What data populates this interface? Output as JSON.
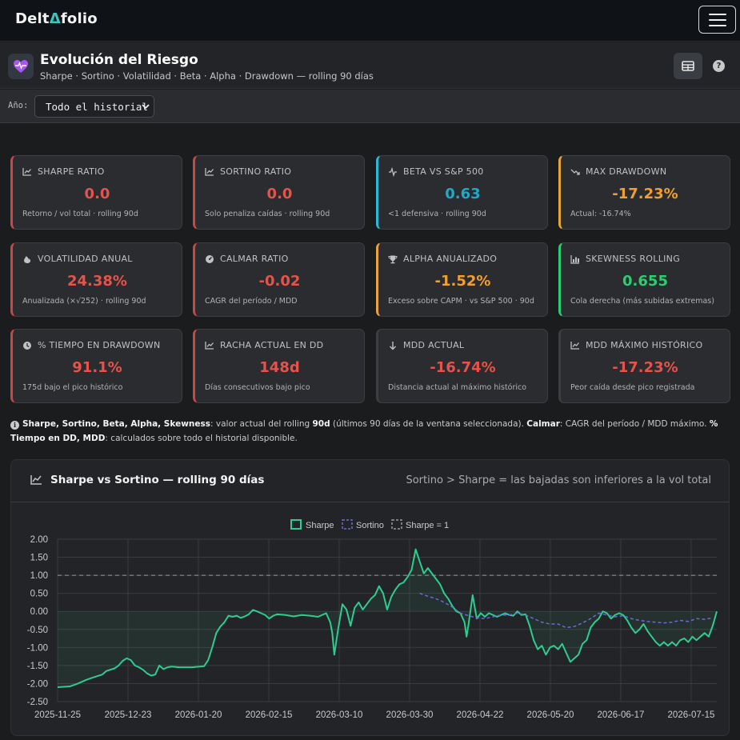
{
  "nav": {
    "brand_prefix": "Delt",
    "brand_glyph": "Δ",
    "brand_suffix": "folio"
  },
  "header": {
    "title": "Evolución del Riesgo",
    "subtitle": "Sharpe · Sortino · Volatilidad · Beta · Alpha · Drawdown — rolling 90 días",
    "help": "?"
  },
  "filter": {
    "label": "Año:",
    "selected": "Todo el historial"
  },
  "cards": [
    {
      "title": "SHARPE RATIO",
      "value": "0.0",
      "sub": "Retorno / vol total · rolling 90d",
      "color": "#e5534b",
      "accent": "#c84848",
      "icon": "line-chart-icon"
    },
    {
      "title": "SORTINO RATIO",
      "value": "0.0",
      "sub": "Solo penaliza caídas · rolling 90d",
      "color": "#e5534b",
      "accent": "#c84848",
      "icon": "line-chart-icon"
    },
    {
      "title": "BETA VS S&P 500",
      "value": "0.63",
      "sub": "<1 defensiva · rolling 90d",
      "color": "#1fa9c7",
      "accent": "#2bbad6",
      "icon": "pulse-icon"
    },
    {
      "title": "MAX DRAWDOWN",
      "value": "-17.23%",
      "sub": "Actual: -16.74%",
      "color": "#f0a030",
      "accent": "#e8a33a",
      "icon": "trend-down-icon"
    },
    {
      "title": "VOLATILIDAD ANUAL",
      "value": "24.38%",
      "sub": "Anualizada (×√252) · rolling 90d",
      "color": "#e5534b",
      "accent": "#c84848",
      "icon": "fire-icon"
    },
    {
      "title": "CALMAR RATIO",
      "value": "-0.02",
      "sub": "CAGR del período / MDD",
      "color": "#e5534b",
      "accent": "#c84848",
      "icon": "gauge-icon"
    },
    {
      "title": "ALPHA ANUALIZADO",
      "value": "-1.52%",
      "sub": "Exceso sobre CAPM · vs S&P 500 · 90d",
      "color": "#f0a030",
      "accent": "#e8a33a",
      "icon": "trophy-icon"
    },
    {
      "title": "SKEWNESS ROLLING",
      "value": "0.655",
      "sub": "Cola derecha (más subidas extremas)",
      "color": "#2ecc71",
      "accent": "#2ecc71",
      "icon": "bar-chart-icon"
    },
    {
      "title": "% TIEMPO EN DRAWDOWN",
      "value": "91.1%",
      "sub": "175d bajo el pico histórico",
      "color": "#e5534b",
      "accent": "#c84848",
      "icon": "clock-icon"
    },
    {
      "title": "RACHA ACTUAL EN DD",
      "value": "148d",
      "sub": "Días consecutivos bajo pico",
      "color": "#e5534b",
      "accent": "#c84848",
      "icon": "line-chart-icon"
    },
    {
      "title": "MDD ACTUAL",
      "value": "-16.74%",
      "sub": "Distancia actual al máximo histórico",
      "color": "#e5534b",
      "accent": "#3c3e42",
      "icon": "arrow-down-icon"
    },
    {
      "title": "MDD MÁXIMO HISTÓRICO",
      "value": "-17.23%",
      "sub": "Peor caída desde pico registrada",
      "color": "#e5534b",
      "accent": "#3c3e42",
      "icon": "line-chart-icon"
    }
  ],
  "note": {
    "b1": "Sharpe, Sortino, Beta, Alpha, Skewness",
    "t1": ": valor actual del rolling ",
    "b2": "90d",
    "t2": " (últimos 90 días de la ventana seleccionada). ",
    "b3": "Calmar",
    "t3": ": CAGR del período / MDD máximo. ",
    "b4": "% Tiempo en DD, MDD",
    "t4": ": calculados sobre todo el historial disponible."
  },
  "chart": {
    "title": "Sharpe vs Sortino — rolling 90 días",
    "note": "Sortino > Sharpe = las bajadas son inferiores a la vol total"
  },
  "chart_data": {
    "type": "line",
    "title": "Sharpe vs Sortino — rolling 90 días",
    "ylim": [
      -2.5,
      2.0
    ],
    "yticks": [
      "2.00",
      "1.50",
      "1.00",
      "0.50",
      "0.00",
      "-0.50",
      "-1.00",
      "-1.50",
      "-2.00",
      "-2.50"
    ],
    "xticks": [
      "2025-11-25",
      "2025-12-23",
      "2026-01-20",
      "2026-02-15",
      "2026-03-10",
      "2026-03-30",
      "2026-04-22",
      "2026-05-20",
      "2026-06-17",
      "2026-07-15"
    ],
    "legend": [
      "Sharpe",
      "Sortino",
      "Sharpe = 1"
    ],
    "legend_position": "top",
    "grid": true,
    "colors": {
      "sharpe": "#2ecc8f",
      "sortino": "#6b6bd6",
      "reference": "#9a9a9a"
    },
    "reference_line": 1.0,
    "sharpe": [
      [
        0,
        -2.1
      ],
      [
        3,
        -2.08
      ],
      [
        5,
        -2.0
      ],
      [
        7,
        -1.9
      ],
      [
        9,
        -1.82
      ],
      [
        11,
        -1.75
      ],
      [
        12,
        -1.65
      ],
      [
        14,
        -1.58
      ],
      [
        15,
        -1.5
      ],
      [
        16,
        -1.37
      ],
      [
        17,
        -1.3
      ],
      [
        18,
        -1.35
      ],
      [
        19,
        -1.5
      ],
      [
        20,
        -1.55
      ],
      [
        21,
        -1.62
      ],
      [
        22,
        -1.72
      ],
      [
        23,
        -1.78
      ],
      [
        24,
        -1.75
      ],
      [
        25,
        -1.5
      ],
      [
        26,
        -1.6
      ],
      [
        27,
        -1.55
      ],
      [
        28,
        -1.53
      ],
      [
        30,
        -1.55
      ],
      [
        33,
        -1.55
      ],
      [
        36,
        -1.52
      ],
      [
        37,
        -1.35
      ],
      [
        38,
        -1.0
      ],
      [
        39,
        -0.6
      ],
      [
        40,
        -0.42
      ],
      [
        41,
        -0.3
      ],
      [
        42,
        -0.12
      ],
      [
        43,
        -0.15
      ],
      [
        44,
        -0.12
      ],
      [
        45,
        -0.18
      ],
      [
        46,
        -0.14
      ],
      [
        47,
        -0.08
      ],
      [
        48,
        0.04
      ],
      [
        49,
        0.0
      ],
      [
        50,
        -0.05
      ],
      [
        51,
        -0.1
      ],
      [
        52,
        -0.2
      ],
      [
        53,
        -0.12
      ],
      [
        54,
        -0.08
      ],
      [
        56,
        -0.1
      ],
      [
        58,
        -0.14
      ],
      [
        60,
        -0.1
      ],
      [
        62,
        -0.12
      ],
      [
        64,
        -0.15
      ],
      [
        66,
        -0.05
      ],
      [
        67,
        -0.3
      ],
      [
        67.5,
        -0.6
      ],
      [
        68,
        -1.2
      ],
      [
        69,
        -0.45
      ],
      [
        70,
        0.2
      ],
      [
        71,
        0.05
      ],
      [
        72,
        -0.4
      ],
      [
        73,
        0.1
      ],
      [
        74,
        0.25
      ],
      [
        75,
        0.05
      ],
      [
        76,
        0.2
      ],
      [
        77,
        0.35
      ],
      [
        78,
        0.45
      ],
      [
        79,
        0.7
      ],
      [
        80,
        0.5
      ],
      [
        81,
        0.05
      ],
      [
        82,
        0.4
      ],
      [
        83,
        0.6
      ],
      [
        84,
        0.75
      ],
      [
        85,
        0.8
      ],
      [
        86,
        0.95
      ],
      [
        87,
        1.15
      ],
      [
        88,
        1.72
      ],
      [
        89,
        1.38
      ],
      [
        90,
        1.05
      ],
      [
        91,
        1.2
      ],
      [
        92,
        1.05
      ],
      [
        93,
        0.9
      ],
      [
        94,
        0.75
      ],
      [
        95,
        0.5
      ],
      [
        96,
        0.35
      ],
      [
        97,
        0.15
      ],
      [
        98,
        0.0
      ],
      [
        99,
        -0.05
      ],
      [
        100,
        -0.3
      ],
      [
        100.5,
        -0.7
      ],
      [
        101,
        -0.35
      ],
      [
        102,
        0.45
      ],
      [
        103,
        -0.2
      ],
      [
        104,
        -0.05
      ],
      [
        105,
        -0.15
      ],
      [
        106,
        -0.05
      ],
      [
        107,
        -0.1
      ],
      [
        108,
        -0.15
      ],
      [
        109,
        -0.1
      ],
      [
        110,
        -0.05
      ],
      [
        111,
        -0.1
      ],
      [
        112,
        -0.12
      ],
      [
        113,
        0.0
      ],
      [
        114,
        -0.1
      ],
      [
        115,
        -0.08
      ],
      [
        116,
        -0.4
      ],
      [
        117,
        -0.8
      ],
      [
        118,
        -1.05
      ],
      [
        119,
        -0.95
      ],
      [
        120,
        -1.2
      ],
      [
        121,
        -1.0
      ],
      [
        122,
        -0.95
      ],
      [
        123,
        -1.05
      ],
      [
        124,
        -0.9
      ],
      [
        125,
        -1.15
      ],
      [
        126,
        -1.4
      ],
      [
        127,
        -1.3
      ],
      [
        128,
        -1.2
      ],
      [
        129,
        -0.9
      ],
      [
        130,
        -0.8
      ],
      [
        131,
        -0.45
      ],
      [
        132,
        -0.3
      ],
      [
        133,
        -0.2
      ],
      [
        134,
        0.0
      ],
      [
        135,
        -0.05
      ],
      [
        136,
        -0.2
      ],
      [
        137,
        -0.1
      ],
      [
        138,
        -0.05
      ],
      [
        139,
        -0.1
      ],
      [
        140,
        -0.25
      ],
      [
        141,
        -0.45
      ],
      [
        142,
        -0.6
      ],
      [
        143,
        -0.5
      ],
      [
        144,
        -0.35
      ],
      [
        145,
        -0.55
      ],
      [
        146,
        -0.7
      ],
      [
        147,
        -0.85
      ],
      [
        148,
        -0.95
      ],
      [
        149,
        -0.85
      ],
      [
        150,
        -0.95
      ],
      [
        151,
        -0.85
      ],
      [
        152,
        -0.95
      ],
      [
        153,
        -0.8
      ],
      [
        154,
        -0.75
      ],
      [
        155,
        -0.85
      ],
      [
        156,
        -0.7
      ],
      [
        157,
        -0.8
      ],
      [
        158,
        -0.7
      ],
      [
        159,
        -0.6
      ],
      [
        160,
        -0.7
      ],
      [
        161,
        -0.4
      ],
      [
        162,
        0.0
      ]
    ],
    "sortino": [
      [
        89,
        0.5
      ],
      [
        91,
        0.42
      ],
      [
        93,
        0.35
      ],
      [
        95,
        0.25
      ],
      [
        97,
        0.12
      ],
      [
        99,
        -0.05
      ],
      [
        101,
        -0.12
      ],
      [
        103,
        -0.18
      ],
      [
        105,
        -0.2
      ],
      [
        107,
        -0.15
      ],
      [
        109,
        -0.1
      ],
      [
        111,
        -0.1
      ],
      [
        113,
        -0.05
      ],
      [
        115,
        -0.1
      ],
      [
        117,
        -0.2
      ],
      [
        119,
        -0.3
      ],
      [
        121,
        -0.35
      ],
      [
        123,
        -0.35
      ],
      [
        125,
        -0.45
      ],
      [
        127,
        -0.42
      ],
      [
        129,
        -0.32
      ],
      [
        131,
        -0.2
      ],
      [
        133,
        -0.05
      ],
      [
        135,
        -0.1
      ],
      [
        137,
        -0.15
      ],
      [
        139,
        -0.12
      ],
      [
        141,
        -0.2
      ],
      [
        143,
        -0.25
      ],
      [
        145,
        -0.28
      ],
      [
        147,
        -0.3
      ],
      [
        149,
        -0.32
      ],
      [
        151,
        -0.3
      ],
      [
        153,
        -0.25
      ],
      [
        155,
        -0.28
      ],
      [
        157,
        -0.2
      ],
      [
        159,
        -0.22
      ],
      [
        161,
        -0.18
      ]
    ]
  }
}
